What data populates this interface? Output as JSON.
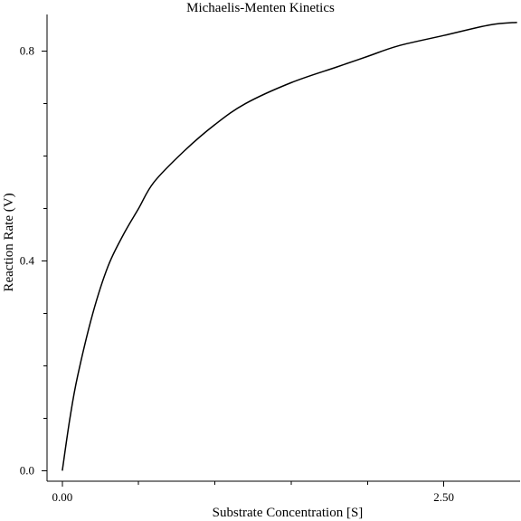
{
  "chart_data": {
    "type": "line",
    "title": "Michaelis-Menten Kinetics",
    "xlabel": "Substrate Concentration [S]",
    "ylabel": "Reaction Rate (V)",
    "xlim": [
      -0.1,
      3.0
    ],
    "ylim": [
      -0.02,
      0.87
    ],
    "x_major_ticks": [
      0.0,
      2.5
    ],
    "x_minor_ticks": [
      0.5,
      1.0,
      1.5,
      2.0
    ],
    "y_major_ticks": [
      0.0,
      0.4,
      0.8
    ],
    "y_minor_ticks": [
      0.1,
      0.2,
      0.3,
      0.5,
      0.6,
      0.7
    ],
    "x_tick_labels": [
      "0.00",
      "2.50"
    ],
    "y_tick_labels": [
      "0.0",
      "0.4",
      "0.8"
    ],
    "grid": false,
    "series": [
      {
        "x": [
          0.0,
          0.05,
          0.1,
          0.2,
          0.3,
          0.4,
          0.5,
          0.6,
          0.8,
          1.0,
          1.2,
          1.5,
          1.8,
          2.0,
          2.2,
          2.5,
          2.8,
          2.98
        ],
        "y": [
          0.0,
          0.1,
          0.18,
          0.3,
          0.39,
          0.45,
          0.5,
          0.55,
          0.61,
          0.66,
          0.7,
          0.74,
          0.77,
          0.79,
          0.81,
          0.83,
          0.85,
          0.855
        ]
      }
    ]
  }
}
